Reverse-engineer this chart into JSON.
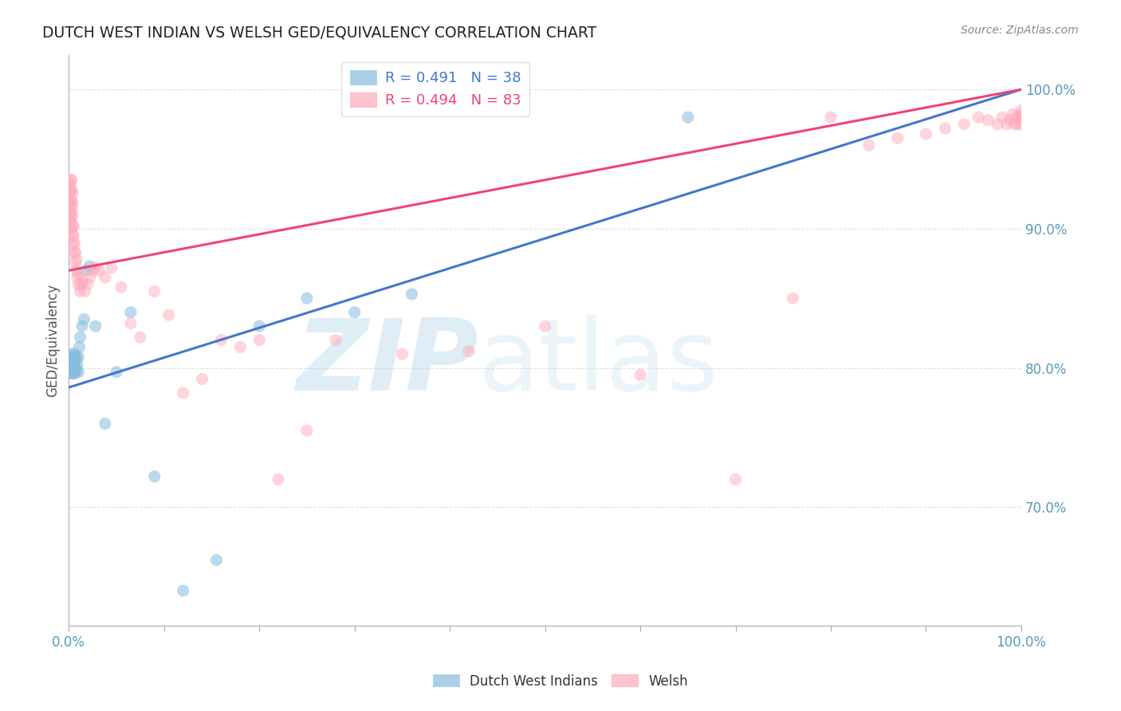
{
  "title": "DUTCH WEST INDIAN VS WELSH GED/EQUIVALENCY CORRELATION CHART",
  "source": "Source: ZipAtlas.com",
  "ylabel": "GED/Equivalency",
  "ytick_labels": [
    "70.0%",
    "80.0%",
    "90.0%",
    "100.0%"
  ],
  "ytick_values": [
    0.7,
    0.8,
    0.9,
    1.0
  ],
  "xtick_labels_show": [
    "0.0%",
    "100.0%"
  ],
  "xlim": [
    0.0,
    1.0
  ],
  "ylim": [
    0.615,
    1.025
  ],
  "legend_blue_text": "R = 0.491   N = 38",
  "legend_pink_text": "R = 0.494   N = 83",
  "blue_color": "#88BBDD",
  "pink_color": "#FFAABB",
  "blue_line_color": "#4477CC",
  "pink_line_color": "#EE4477",
  "watermark_text": "ZIPatlas",
  "watermark_color": "#C8DFF0",
  "blue_label": "Dutch West Indians",
  "pink_label": "Welsh",
  "blue_line_start_y": 0.786,
  "blue_line_end_y": 1.0,
  "pink_line_start_y": 0.87,
  "pink_line_end_y": 1.0,
  "dutch_x": [
    0.002,
    0.003,
    0.003,
    0.003,
    0.004,
    0.004,
    0.004,
    0.005,
    0.005,
    0.005,
    0.006,
    0.006,
    0.006,
    0.007,
    0.007,
    0.008,
    0.008,
    0.009,
    0.01,
    0.01,
    0.011,
    0.012,
    0.014,
    0.016,
    0.018,
    0.022,
    0.028,
    0.038,
    0.05,
    0.065,
    0.09,
    0.12,
    0.155,
    0.2,
    0.25,
    0.3,
    0.36,
    0.65
  ],
  "dutch_y": [
    0.8,
    0.796,
    0.8,
    0.808,
    0.796,
    0.802,
    0.81,
    0.797,
    0.801,
    0.808,
    0.796,
    0.803,
    0.81,
    0.8,
    0.808,
    0.798,
    0.806,
    0.802,
    0.797,
    0.808,
    0.815,
    0.822,
    0.83,
    0.835,
    0.87,
    0.873,
    0.83,
    0.76,
    0.797,
    0.84,
    0.722,
    0.64,
    0.662,
    0.83,
    0.85,
    0.84,
    0.853,
    0.98
  ],
  "welsh_x": [
    0.001,
    0.001,
    0.001,
    0.001,
    0.002,
    0.002,
    0.002,
    0.002,
    0.002,
    0.003,
    0.003,
    0.003,
    0.003,
    0.003,
    0.003,
    0.004,
    0.004,
    0.004,
    0.004,
    0.004,
    0.005,
    0.005,
    0.005,
    0.006,
    0.006,
    0.007,
    0.007,
    0.008,
    0.008,
    0.009,
    0.01,
    0.01,
    0.012,
    0.013,
    0.015,
    0.017,
    0.02,
    0.022,
    0.025,
    0.028,
    0.032,
    0.038,
    0.045,
    0.055,
    0.065,
    0.075,
    0.09,
    0.105,
    0.12,
    0.14,
    0.16,
    0.18,
    0.2,
    0.22,
    0.25,
    0.28,
    0.35,
    0.42,
    0.5,
    0.6,
    0.7,
    0.76,
    0.8,
    0.84,
    0.87,
    0.9,
    0.92,
    0.94,
    0.955,
    0.965,
    0.975,
    0.98,
    0.985,
    0.988,
    0.991,
    0.993,
    0.995,
    0.997,
    0.998,
    0.999,
    1.0,
    1.0,
    1.0
  ],
  "welsh_y": [
    0.91,
    0.918,
    0.925,
    0.932,
    0.905,
    0.912,
    0.92,
    0.928,
    0.935,
    0.9,
    0.908,
    0.915,
    0.92,
    0.928,
    0.935,
    0.895,
    0.902,
    0.91,
    0.918,
    0.925,
    0.888,
    0.895,
    0.902,
    0.883,
    0.89,
    0.876,
    0.883,
    0.87,
    0.878,
    0.865,
    0.86,
    0.868,
    0.855,
    0.86,
    0.862,
    0.855,
    0.86,
    0.865,
    0.87,
    0.872,
    0.87,
    0.865,
    0.872,
    0.858,
    0.832,
    0.822,
    0.855,
    0.838,
    0.782,
    0.792,
    0.82,
    0.815,
    0.82,
    0.72,
    0.755,
    0.82,
    0.81,
    0.812,
    0.83,
    0.795,
    0.72,
    0.85,
    0.98,
    0.96,
    0.965,
    0.968,
    0.972,
    0.975,
    0.98,
    0.978,
    0.975,
    0.98,
    0.975,
    0.978,
    0.982,
    0.975,
    0.98,
    0.975,
    0.98,
    0.982,
    0.975,
    0.98,
    0.985
  ]
}
